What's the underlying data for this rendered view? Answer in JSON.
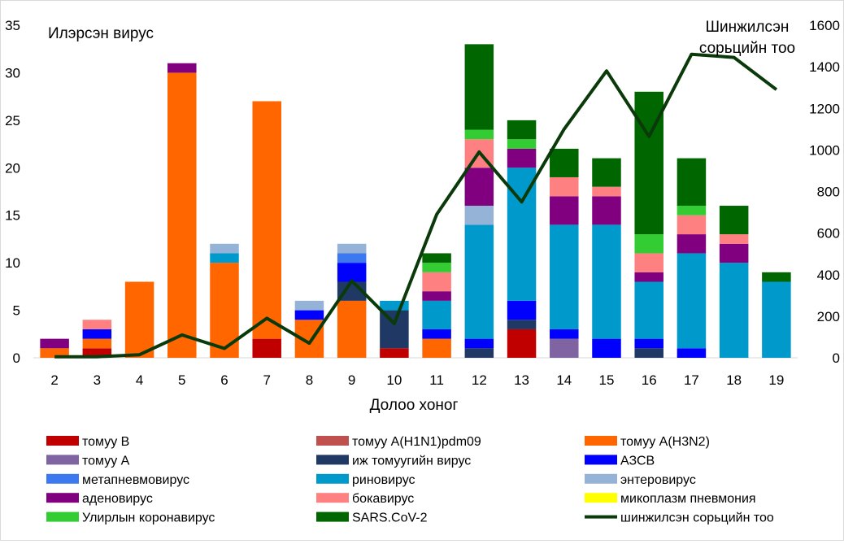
{
  "chart_data": {
    "type": "bar",
    "stacked": true,
    "grid": false,
    "legend_position": "bottom",
    "xlabel": "Долоо хоног",
    "ylabel": "Илэрсэн вирус",
    "y2label_line1": "Шинжилсэн",
    "y2label_line2": "сорьцийн тоо",
    "ylim": [
      0,
      35
    ],
    "y2lim": [
      0,
      1600
    ],
    "yticks": [
      0,
      5,
      10,
      15,
      20,
      25,
      30,
      35
    ],
    "y2ticks": [
      0,
      200,
      400,
      600,
      800,
      1000,
      1200,
      1400,
      1600
    ],
    "categories": [
      "2",
      "3",
      "4",
      "5",
      "6",
      "7",
      "8",
      "9",
      "10",
      "11",
      "12",
      "13",
      "14",
      "15",
      "16",
      "17",
      "18",
      "19"
    ],
    "series": [
      {
        "name": "томуу B",
        "color": "#c00000",
        "values": [
          0,
          1,
          0,
          0,
          0,
          2,
          0,
          0,
          1,
          0,
          0,
          3,
          0,
          0,
          0,
          0,
          0,
          0
        ]
      },
      {
        "name": "томуу A(H1N1)pdm09",
        "color": "#c0504d",
        "values": [
          0,
          0,
          0,
          0,
          0,
          0,
          0,
          0,
          0,
          0,
          0,
          0,
          0,
          0,
          0,
          0,
          0,
          0
        ]
      },
      {
        "name": "томуу A(H3N2)",
        "color": "#ff6600",
        "values": [
          1,
          1,
          8,
          30,
          10,
          25,
          4,
          6,
          0,
          2,
          0,
          0,
          0,
          0,
          0,
          0,
          0,
          0
        ]
      },
      {
        "name": "томуу A",
        "color": "#8064a2",
        "values": [
          0,
          0,
          0,
          0,
          0,
          0,
          0,
          0,
          0,
          0,
          0,
          0,
          2,
          0,
          0,
          0,
          0,
          0
        ]
      },
      {
        "name": "иж томуугийн вирус",
        "color": "#1f3864",
        "values": [
          0,
          0,
          0,
          0,
          0,
          0,
          0,
          2,
          4,
          0,
          1,
          1,
          0,
          0,
          1,
          0,
          0,
          0
        ]
      },
      {
        "name": "АЗСВ",
        "color": "#0000ff",
        "values": [
          0,
          1,
          0,
          0,
          0,
          0,
          1,
          2,
          0,
          1,
          1,
          2,
          1,
          2,
          1,
          1,
          0,
          0
        ]
      },
      {
        "name": "метапневмовирус",
        "color": "#3c78f0",
        "values": [
          0,
          0,
          0,
          0,
          0,
          0,
          0,
          1,
          0,
          0,
          0,
          0,
          0,
          0,
          0,
          0,
          0,
          0
        ]
      },
      {
        "name": "риновирус",
        "color": "#0099cc",
        "values": [
          0,
          0,
          0,
          0,
          1,
          0,
          0,
          0,
          1,
          3,
          12,
          14,
          11,
          12,
          6,
          10,
          10,
          8
        ]
      },
      {
        "name": "энтеровирус",
        "color": "#95b3d7",
        "values": [
          0,
          0,
          0,
          0,
          1,
          0,
          1,
          1,
          0,
          0,
          2,
          0,
          0,
          0,
          0,
          0,
          0,
          0
        ]
      },
      {
        "name": "аденовирус",
        "color": "#800080",
        "values": [
          1,
          0,
          0,
          1,
          0,
          0,
          0,
          0,
          0,
          1,
          4,
          2,
          3,
          3,
          1,
          2,
          2,
          0
        ]
      },
      {
        "name": "бокавирус",
        "color": "#ff8080",
        "values": [
          0,
          1,
          0,
          0,
          0,
          0,
          0,
          0,
          0,
          2,
          3,
          0,
          2,
          1,
          2,
          2,
          1,
          0
        ]
      },
      {
        "name": "микоплазм пневмония",
        "color": "#ffff00",
        "values": [
          0,
          0,
          0,
          0,
          0,
          0,
          0,
          0,
          0,
          0,
          0,
          0,
          0,
          0,
          0,
          0,
          0,
          0
        ]
      },
      {
        "name": "Улирлын коронавирус",
        "color": "#33cc33",
        "values": [
          0,
          0,
          0,
          0,
          0,
          0,
          0,
          0,
          0,
          1,
          1,
          1,
          0,
          0,
          2,
          1,
          0,
          0
        ]
      },
      {
        "name": "SARS.CoV-2",
        "color": "#006600",
        "values": [
          0,
          0,
          0,
          0,
          0,
          0,
          0,
          0,
          0,
          1,
          9,
          2,
          3,
          3,
          15,
          5,
          3,
          1
        ]
      }
    ],
    "line_series": {
      "name": "шинжилсэн сорьцийн тоо",
      "color": "#0a3a0a",
      "axis": "right",
      "values": [
        5,
        5,
        15,
        110,
        45,
        190,
        70,
        370,
        165,
        690,
        990,
        750,
        1100,
        1380,
        1065,
        1460,
        1445,
        1290
      ]
    }
  }
}
